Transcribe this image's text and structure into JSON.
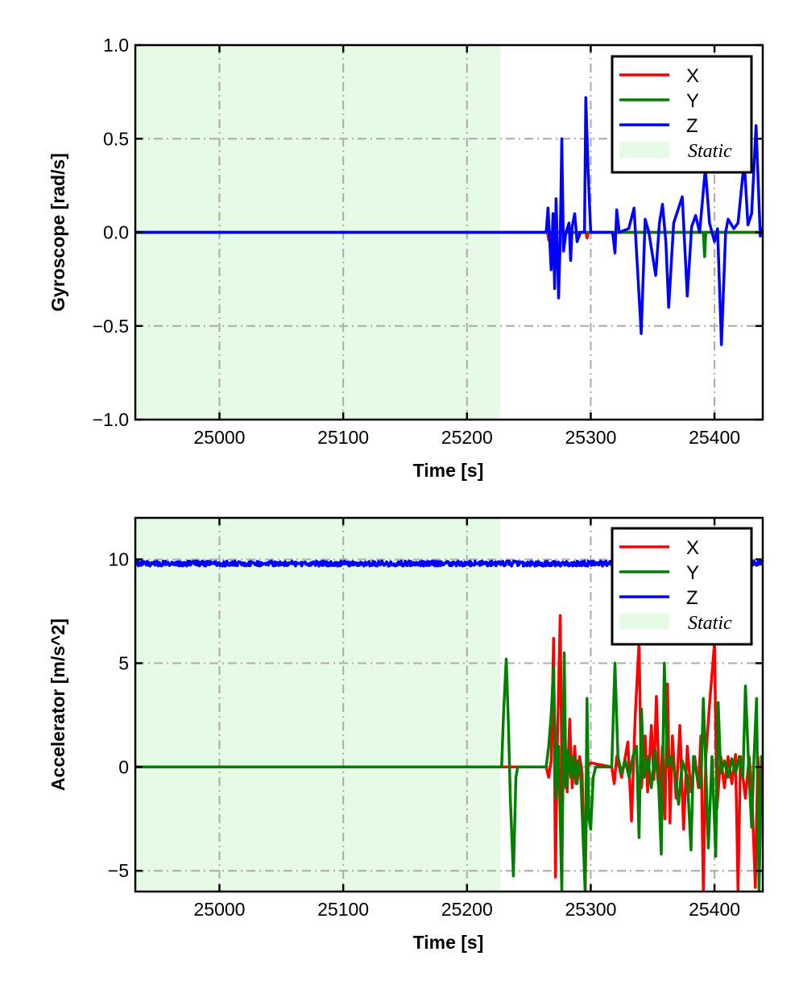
{
  "chart_data": [
    {
      "type": "line",
      "title": "",
      "xlabel": "Time [s]",
      "ylabel": "Gyroscope [rad/s]",
      "xlim": [
        24932,
        25439
      ],
      "ylim": [
        -1.0,
        1.0
      ],
      "xticks": [
        25000,
        25100,
        25200,
        25300,
        25400
      ],
      "xticklabels": [
        "25000",
        "25100",
        "25200",
        "25300",
        "25400"
      ],
      "yticks": [
        -1.0,
        -0.5,
        0.0,
        0.5,
        1.0
      ],
      "yticklabels": [
        "−1.0",
        "−0.5",
        "0.0",
        "0.5",
        "1.0"
      ],
      "grid": true,
      "legend_position": "top-right",
      "static_span": [
        24932,
        25227
      ],
      "static_label": "Static",
      "static_color": "#e6fbe6",
      "series": [
        {
          "name": "X",
          "color": "#ff0000",
          "points": [
            [
              24932,
              0
            ],
            [
              25265,
              0
            ],
            [
              25266,
              -0.04
            ],
            [
              25267,
              0
            ],
            [
              25278,
              0
            ],
            [
              25279,
              -0.03
            ],
            [
              25280,
              0
            ],
            [
              25296,
              0
            ],
            [
              25297,
              -0.03
            ],
            [
              25298,
              0
            ],
            [
              25439,
              0
            ]
          ]
        },
        {
          "name": "Y",
          "color": "#008000",
          "points": [
            [
              24932,
              0
            ],
            [
              25391,
              0
            ],
            [
              25392,
              -0.13
            ],
            [
              25393,
              0
            ],
            [
              25439,
              0
            ]
          ]
        },
        {
          "name": "Z",
          "color": "#0000ff",
          "points": [
            [
              24932,
              0
            ],
            [
              25264,
              0
            ],
            [
              25265.5,
              0.13
            ],
            [
              25268,
              -0.2
            ],
            [
              25269.5,
              0.1
            ],
            [
              25270.8,
              -0.3
            ],
            [
              25272,
              0.18
            ],
            [
              25274,
              -0.35
            ],
            [
              25275.3,
              -0.05
            ],
            [
              25276.6,
              0.5
            ],
            [
              25278,
              -0.1
            ],
            [
              25280,
              0
            ],
            [
              25282.5,
              0.05
            ],
            [
              25283.8,
              -0.15
            ],
            [
              25285,
              0.03
            ],
            [
              25287,
              0.1
            ],
            [
              25289,
              -0.05
            ],
            [
              25291.6,
              0
            ],
            [
              25295,
              0
            ],
            [
              25296,
              0.72
            ],
            [
              25298,
              0.3
            ],
            [
              25300,
              0
            ],
            [
              25317.7,
              0
            ],
            [
              25319.6,
              -0.11
            ],
            [
              25321,
              0.12
            ],
            [
              25323,
              0
            ],
            [
              25330.7,
              0.02
            ],
            [
              25335,
              0.13
            ],
            [
              25340.8,
              -0.54
            ],
            [
              25344,
              0.07
            ],
            [
              25347,
              0
            ],
            [
              25352.5,
              -0.23
            ],
            [
              25355.5,
              0.05
            ],
            [
              25358,
              0.15
            ],
            [
              25360.7,
              -0.05
            ],
            [
              25363,
              -0.4
            ],
            [
              25367,
              0.05
            ],
            [
              25371,
              0.13
            ],
            [
              25374,
              0.19
            ],
            [
              25378,
              -0.34
            ],
            [
              25381.5,
              0.03
            ],
            [
              25384.8,
              0.09
            ],
            [
              25388,
              0
            ],
            [
              25392.6,
              0.34
            ],
            [
              25396,
              0.05
            ],
            [
              25400,
              -0.05
            ],
            [
              25402.5,
              0.02
            ],
            [
              25405.6,
              -0.6
            ],
            [
              25409,
              0.0
            ],
            [
              25411,
              0.07
            ],
            [
              25415.6,
              0.02
            ],
            [
              25419,
              0.05
            ],
            [
              25424,
              0.38
            ],
            [
              25427,
              0.04
            ],
            [
              25430,
              0.1
            ],
            [
              25433.6,
              0.57
            ],
            [
              25437,
              -0.02
            ],
            [
              25439,
              0.03
            ]
          ]
        }
      ]
    },
    {
      "type": "line",
      "title": "",
      "xlabel": "Time [s]",
      "ylabel": "Accelerator [m/s^2]",
      "xlim": [
        24932,
        25439
      ],
      "ylim": [
        -6,
        12
      ],
      "xticks": [
        25000,
        25100,
        25200,
        25300,
        25400
      ],
      "xticklabels": [
        "25000",
        "25100",
        "25200",
        "25300",
        "25400"
      ],
      "yticks": [
        -5,
        0,
        5,
        10
      ],
      "yticklabels": [
        "−5",
        "0",
        "5",
        "10"
      ],
      "grid": true,
      "legend_position": "top-right",
      "static_span": [
        24932,
        25227
      ],
      "static_label": "Static",
      "static_color": "#e6fbe6",
      "series": [
        {
          "name": "X",
          "color": "#ff0000",
          "points": [
            [
              24932,
              0
            ],
            [
              25264,
              0
            ],
            [
              25266,
              -0.5
            ],
            [
              25268,
              0.3
            ],
            [
              25270,
              6.2
            ],
            [
              25271.5,
              -5.3
            ],
            [
              25273,
              1.0
            ],
            [
              25275.3,
              7.3
            ],
            [
              25277,
              -2
            ],
            [
              25279,
              1.5
            ],
            [
              25281,
              -1.2
            ],
            [
              25283,
              2.3
            ],
            [
              25285,
              -1.0
            ],
            [
              25287,
              1.0
            ],
            [
              25289,
              -0.8
            ],
            [
              25291,
              0.5
            ],
            [
              25293,
              -0.3
            ],
            [
              25295.5,
              -6
            ],
            [
              25297,
              0
            ],
            [
              25300,
              0.2
            ],
            [
              25317,
              0
            ],
            [
              25319,
              -0.8
            ],
            [
              25321,
              0.5
            ],
            [
              25325,
              -0.5
            ],
            [
              25330,
              1.2
            ],
            [
              25333,
              -2.6
            ],
            [
              25336,
              2.5
            ],
            [
              25339,
              6.0
            ],
            [
              25341,
              -1.0
            ],
            [
              25344,
              1.5
            ],
            [
              25346,
              -1.2
            ],
            [
              25349,
              2.0
            ],
            [
              25351,
              -0.6
            ],
            [
              25353,
              3.4
            ],
            [
              25356,
              -1.9
            ],
            [
              25358,
              1.0
            ],
            [
              25360,
              -2.5
            ],
            [
              25362,
              4.0
            ],
            [
              25364,
              -2.7
            ],
            [
              25366,
              1.5
            ],
            [
              25369,
              -1.5
            ],
            [
              25372,
              2.0
            ],
            [
              25375,
              -3.0
            ],
            [
              25378,
              1.0
            ],
            [
              25381,
              -1.2
            ],
            [
              25384,
              0.5
            ],
            [
              25387,
              -1.0
            ],
            [
              25389,
              1.5
            ],
            [
              25391,
              -6
            ],
            [
              25393,
              0.5
            ],
            [
              25396,
              3.0
            ],
            [
              25400,
              6.0
            ],
            [
              25402,
              -2.0
            ],
            [
              25405,
              0.5
            ],
            [
              25408,
              -1.0
            ],
            [
              25411,
              0.5
            ],
            [
              25414,
              -0.8
            ],
            [
              25417,
              0.6
            ],
            [
              25419,
              -6
            ],
            [
              25421,
              0.5
            ],
            [
              25425,
              -1.5
            ],
            [
              25428,
              0.5
            ],
            [
              25430,
              -1
            ],
            [
              25433,
              -5.8
            ],
            [
              25435,
              0.5
            ],
            [
              25437,
              -2
            ],
            [
              25439,
              0.5
            ]
          ]
        },
        {
          "name": "Y",
          "color": "#008000",
          "points": [
            [
              24932,
              0
            ],
            [
              25228,
              0
            ],
            [
              25229.5,
              2.5
            ],
            [
              25231.7,
              5.2
            ],
            [
              25233.5,
              2.0
            ],
            [
              25235,
              -1.5
            ],
            [
              25237.5,
              -5.25
            ],
            [
              25239.5,
              -0.5
            ],
            [
              25241,
              0
            ],
            [
              25264,
              0
            ],
            [
              25266,
              1.0
            ],
            [
              25268,
              2.5
            ],
            [
              25270,
              4.8
            ],
            [
              25272,
              -1.5
            ],
            [
              25274,
              1.0
            ],
            [
              25276.6,
              -6
            ],
            [
              25278.6,
              5.5
            ],
            [
              25280,
              -1.0
            ],
            [
              25282,
              0.8
            ],
            [
              25284,
              -0.5
            ],
            [
              25286,
              0.5
            ],
            [
              25288,
              -0.8
            ],
            [
              25290,
              0.3
            ],
            [
              25292,
              -0.5
            ],
            [
              25295.5,
              -6
            ],
            [
              25297,
              3.3
            ],
            [
              25298.5,
              -2.5
            ],
            [
              25300,
              -3.0
            ],
            [
              25302,
              -0.5
            ],
            [
              25304,
              0
            ],
            [
              25317,
              0
            ],
            [
              25319.6,
              5.0
            ],
            [
              25322,
              0.5
            ],
            [
              25325,
              -0.3
            ],
            [
              25328,
              0.3
            ],
            [
              25331,
              -0.5
            ],
            [
              25334,
              0.5
            ],
            [
              25337,
              1.0
            ],
            [
              25339,
              -3.4
            ],
            [
              25341,
              2.8
            ],
            [
              25343,
              -0.5
            ],
            [
              25346,
              0.5
            ],
            [
              25349,
              -1.0
            ],
            [
              25352,
              0.8
            ],
            [
              25355,
              -1.0
            ],
            [
              25357,
              -4.2
            ],
            [
              25359.5,
              5.0
            ],
            [
              25362,
              0
            ],
            [
              25365,
              0.5
            ],
            [
              25368,
              -0.3
            ],
            [
              25371,
              -1.8
            ],
            [
              25374,
              0.3
            ],
            [
              25378,
              -0.5
            ],
            [
              25381,
              -4.0
            ],
            [
              25383,
              0.5
            ],
            [
              25386,
              -0.5
            ],
            [
              25389,
              -1.0
            ],
            [
              25391,
              3.3
            ],
            [
              25393,
              0
            ],
            [
              25395,
              -3.9
            ],
            [
              25398,
              0.5
            ],
            [
              25401,
              -4.3
            ],
            [
              25403,
              3.1
            ],
            [
              25405,
              -0.3
            ],
            [
              25408,
              0.3
            ],
            [
              25411,
              -0.5
            ],
            [
              25414,
              0.4
            ],
            [
              25417,
              -0.3
            ],
            [
              25420,
              0.5
            ],
            [
              25423,
              -0.5
            ],
            [
              25425,
              3.9
            ],
            [
              25428,
              -0.5
            ],
            [
              25430,
              -2.9
            ],
            [
              25432,
              0.5
            ],
            [
              25434,
              3.3
            ],
            [
              25436,
              -6
            ],
            [
              25438,
              0.5
            ],
            [
              25439,
              0
            ]
          ]
        },
        {
          "name": "Z",
          "color": "#0000ff",
          "points": [
            [
              24932,
              9.8
            ],
            [
              25439,
              9.8
            ]
          ]
        }
      ]
    }
  ]
}
